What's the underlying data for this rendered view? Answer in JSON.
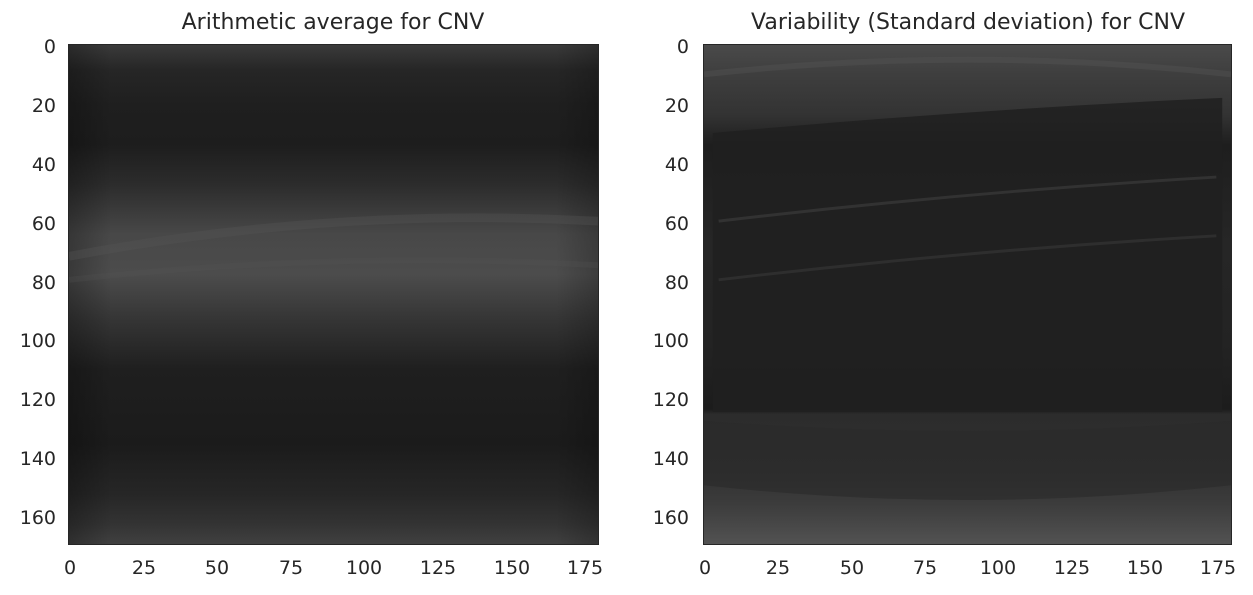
{
  "chart_data": [
    {
      "type": "heatmap",
      "title": "Arithmetic average for CNV",
      "colormap": "grayscale",
      "xlim": [
        0,
        180
      ],
      "ylim": [
        170,
        0
      ],
      "x_ticks": [
        "0",
        "25",
        "50",
        "75",
        "100",
        "125",
        "150",
        "175"
      ],
      "y_ticks": [
        "0",
        "20",
        "40",
        "60",
        "80",
        "100",
        "120",
        "140",
        "160"
      ],
      "grid": false,
      "description_values": {
        "bands": [
          {
            "y_from": 0,
            "y_to": 20,
            "level": 0.17
          },
          {
            "y_from": 20,
            "y_to": 40,
            "level": 0.14
          },
          {
            "y_from": 40,
            "y_to": 55,
            "level": 0.19
          },
          {
            "y_from": 55,
            "y_to": 90,
            "level": 0.3
          },
          {
            "y_from": 90,
            "y_to": 150,
            "level": 0.12
          },
          {
            "y_from": 150,
            "y_to": 170,
            "level": 0.2
          }
        ]
      }
    },
    {
      "type": "heatmap",
      "title": "Variability (Standard deviation) for CNV",
      "colormap": "grayscale",
      "xlim": [
        0,
        180
      ],
      "ylim": [
        170,
        0
      ],
      "x_ticks": [
        "0",
        "25",
        "50",
        "75",
        "100",
        "125",
        "150",
        "175"
      ],
      "y_ticks": [
        "0",
        "20",
        "40",
        "60",
        "80",
        "100",
        "120",
        "140",
        "160"
      ],
      "grid": false,
      "description_values": {
        "bands": [
          {
            "y_from": 0,
            "y_to": 30,
            "level": 0.24
          },
          {
            "y_from": 30,
            "y_to": 125,
            "level": 0.12
          },
          {
            "y_from": 125,
            "y_to": 150,
            "level": 0.17
          },
          {
            "y_from": 150,
            "y_to": 170,
            "level": 0.3
          }
        ]
      }
    }
  ]
}
